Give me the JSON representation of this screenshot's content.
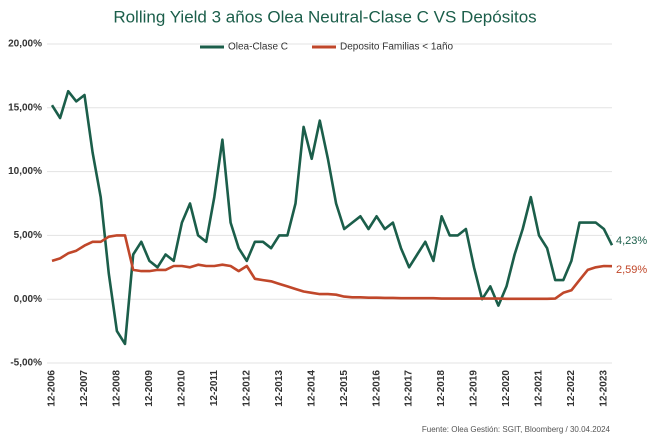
{
  "chart_data": {
    "type": "line",
    "title": "Rolling Yield 3 años Olea Neutral-Clase C VS Depósitos",
    "source": "Fuente: Olea Gestión: SGIT, Bloomberg / 30.04.2024",
    "categories": [
      "12-2006",
      null,
      null,
      null,
      "12-2007",
      null,
      null,
      null,
      "12-2008",
      null,
      null,
      null,
      "12-2009",
      null,
      null,
      null,
      "12-2010",
      null,
      null,
      null,
      "12-2011",
      null,
      null,
      null,
      "12-2012",
      null,
      null,
      null,
      "12-2013",
      null,
      null,
      null,
      "12-2014",
      null,
      null,
      null,
      "12-2015",
      null,
      null,
      null,
      "12-2016",
      null,
      null,
      null,
      "12-2017",
      null,
      null,
      null,
      "12-2018",
      null,
      null,
      null,
      "12-2019",
      null,
      null,
      null,
      "12-2020",
      null,
      null,
      null,
      "12-2021",
      null,
      null,
      null,
      "12-2022",
      null,
      null,
      null,
      "12-2023",
      null
    ],
    "series": [
      {
        "name": "Olea-Clase C",
        "color": "#1b5e4a",
        "values": [
          15.2,
          14.2,
          16.3,
          15.5,
          16.0,
          11.5,
          8.0,
          2.0,
          -2.5,
          -3.5,
          3.5,
          4.5,
          3.0,
          2.5,
          3.5,
          3.0,
          6.0,
          7.5,
          5.0,
          4.5,
          8.0,
          12.5,
          6.0,
          4.0,
          3.0,
          4.5,
          4.5,
          4.0,
          5.0,
          5.0,
          7.5,
          13.5,
          11.0,
          14.0,
          11.0,
          7.5,
          5.5,
          6.0,
          6.5,
          5.5,
          6.5,
          5.5,
          6.0,
          4.0,
          2.5,
          3.5,
          4.5,
          3.0,
          6.5,
          5.0,
          5.0,
          5.5,
          2.5,
          0.0,
          1.0,
          -0.5,
          1.0,
          3.5,
          5.5,
          8.0,
          5.0,
          4.0,
          1.5,
          1.5,
          3.0,
          6.0,
          6.0,
          6.0,
          5.5,
          4.23
        ],
        "value_labels": [
          null,
          null,
          null,
          null,
          null,
          null,
          null,
          null,
          null,
          null,
          null,
          null,
          null,
          null,
          null,
          null,
          null,
          null,
          null,
          null,
          null,
          null,
          null,
          null,
          null,
          null,
          null,
          null,
          null,
          null,
          null,
          null,
          null,
          null,
          null,
          null,
          null,
          null,
          null,
          null,
          null,
          null,
          null,
          null,
          null,
          null,
          null,
          null,
          null,
          null,
          null,
          null,
          null,
          null,
          null,
          null,
          null,
          null,
          null,
          null,
          null,
          null,
          null,
          null,
          null,
          null,
          null,
          null,
          null,
          "4,23%"
        ]
      },
      {
        "name": "Deposito Familias < 1año",
        "color": "#c0472a",
        "values": [
          3.0,
          3.2,
          3.6,
          3.8,
          4.2,
          4.5,
          4.5,
          4.9,
          5.0,
          5.0,
          2.3,
          2.2,
          2.2,
          2.3,
          2.3,
          2.6,
          2.6,
          2.5,
          2.7,
          2.6,
          2.6,
          2.7,
          2.6,
          2.2,
          2.6,
          1.6,
          1.5,
          1.4,
          1.2,
          1.0,
          0.8,
          0.6,
          0.5,
          0.4,
          0.4,
          0.35,
          0.2,
          0.15,
          0.15,
          0.12,
          0.12,
          0.1,
          0.1,
          0.08,
          0.08,
          0.08,
          0.08,
          0.08,
          0.05,
          0.05,
          0.05,
          0.05,
          0.05,
          0.05,
          0.05,
          0.05,
          0.03,
          0.03,
          0.03,
          0.03,
          0.03,
          0.03,
          0.05,
          0.5,
          0.7,
          1.5,
          2.3,
          2.5,
          2.6,
          2.59
        ],
        "value_labels": [
          null,
          null,
          null,
          null,
          null,
          null,
          null,
          null,
          null,
          null,
          null,
          null,
          null,
          null,
          null,
          null,
          null,
          null,
          null,
          null,
          null,
          null,
          null,
          null,
          null,
          null,
          null,
          null,
          null,
          null,
          null,
          null,
          null,
          null,
          null,
          null,
          null,
          null,
          null,
          null,
          null,
          null,
          null,
          null,
          null,
          null,
          null,
          null,
          null,
          null,
          null,
          null,
          null,
          null,
          null,
          null,
          null,
          null,
          null,
          null,
          null,
          null,
          null,
          null,
          null,
          null,
          null,
          null,
          null,
          "2,59%"
        ]
      }
    ],
    "ylim": [
      -5,
      20
    ],
    "yticks": [
      {
        "value": -5,
        "label": "-5,00%"
      },
      {
        "value": 0,
        "label": "0,00%"
      },
      {
        "value": 5,
        "label": "5,00%"
      },
      {
        "value": 10,
        "label": "10,00%"
      },
      {
        "value": 15,
        "label": "15,00%"
      },
      {
        "value": 20,
        "label": "20,00%"
      }
    ],
    "grid": true
  }
}
